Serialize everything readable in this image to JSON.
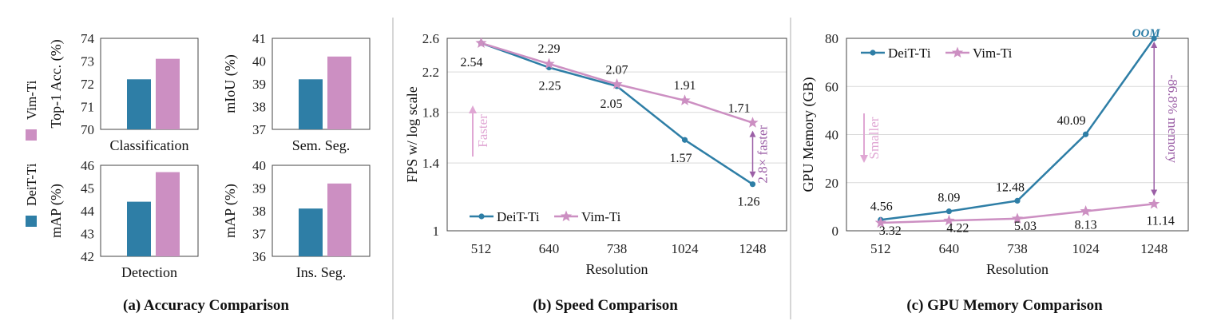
{
  "colors": {
    "deit": "#2e7ea6",
    "vim": "#cc8fc2",
    "faster_arrow": "#e0a7d4",
    "annotation": "#9b5fa6",
    "gridline": "#d9d9d9",
    "separator": "#c8c8c8"
  },
  "legend": {
    "deit": "DeiT-Ti",
    "vim": "Vim-Ti"
  },
  "captions": {
    "a": "(a) Accuracy Comparison",
    "b": "(b) Speed Comparison",
    "c": "(c) GPU Memory Comparison"
  },
  "annotations": {
    "faster": "Faster",
    "smaller": "Smaller",
    "speedup": "2.8× faster",
    "memory": "-86.8% memory",
    "oom": "OOM"
  },
  "chart_data": [
    {
      "id": "classification",
      "type": "bar",
      "xlabel": "Classification",
      "ylabel": "Top-1 Acc. (%)",
      "ylim": [
        70,
        74
      ],
      "yticks": [
        70,
        71,
        72,
        73,
        74
      ],
      "series": [
        {
          "name": "DeiT-Ti",
          "values": [
            72.2
          ]
        },
        {
          "name": "Vim-Ti",
          "values": [
            73.1
          ]
        }
      ]
    },
    {
      "id": "semseg",
      "type": "bar",
      "xlabel": "Sem. Seg.",
      "ylabel": "mIoU (%)",
      "ylim": [
        37,
        41
      ],
      "yticks": [
        37,
        38,
        39,
        40,
        41
      ],
      "series": [
        {
          "name": "DeiT-Ti",
          "values": [
            39.2
          ]
        },
        {
          "name": "Vim-Ti",
          "values": [
            40.2
          ]
        }
      ]
    },
    {
      "id": "detection",
      "type": "bar",
      "xlabel": "Detection",
      "ylabel": "mAP (%)",
      "ylim": [
        42,
        46
      ],
      "yticks": [
        42,
        43,
        44,
        45,
        46
      ],
      "series": [
        {
          "name": "DeiT-Ti",
          "values": [
            44.4
          ]
        },
        {
          "name": "Vim-Ti",
          "values": [
            45.7
          ]
        }
      ]
    },
    {
      "id": "insseg",
      "type": "bar",
      "xlabel": "Ins. Seg.",
      "ylabel": "mAP (%)",
      "ylim": [
        36,
        40
      ],
      "yticks": [
        36,
        37,
        38,
        39,
        40
      ],
      "series": [
        {
          "name": "DeiT-Ti",
          "values": [
            38.1
          ]
        },
        {
          "name": "Vim-Ti",
          "values": [
            39.2
          ]
        }
      ]
    },
    {
      "id": "speed",
      "type": "line",
      "x": [
        "512",
        "640",
        "738",
        "1024",
        "1248"
      ],
      "xlabel": "Resolution",
      "ylabel": "FPS w/ log scale",
      "ylim": [
        1,
        2.6
      ],
      "yticks": [
        "1",
        "1.4",
        "1.8",
        "2.2",
        "2.6"
      ],
      "grid": true,
      "legend_position": "bottom-left",
      "series": [
        {
          "name": "DeiT-Ti",
          "values": [
            2.54,
            2.25,
            2.05,
            1.57,
            1.26
          ],
          "labels": [
            "",
            "2.25",
            "2.05",
            "1.57",
            "1.26"
          ]
        },
        {
          "name": "Vim-Ti",
          "values": [
            2.54,
            2.29,
            2.07,
            1.91,
            1.71
          ],
          "labels": [
            "2.54",
            "2.29",
            "2.07",
            "1.91",
            "1.71"
          ]
        }
      ]
    },
    {
      "id": "memory",
      "type": "line",
      "x": [
        "512",
        "640",
        "738",
        "1024",
        "1248"
      ],
      "xlabel": "Resolution",
      "ylabel": "GPU Memory (GB)",
      "ylim": [
        0,
        80
      ],
      "yticks": [
        "0",
        "20",
        "40",
        "60",
        "80"
      ],
      "grid": true,
      "legend_position": "top-left",
      "series": [
        {
          "name": "DeiT-Ti",
          "values": [
            4.56,
            8.09,
            12.48,
            40.09,
            80
          ],
          "labels": [
            "4.56",
            "8.09",
            "12.48",
            "40.09",
            ""
          ]
        },
        {
          "name": "Vim-Ti",
          "values": [
            3.32,
            4.22,
            5.03,
            8.13,
            11.14
          ],
          "labels": [
            "3.32",
            "4.22",
            "5.03",
            "8.13",
            "11.14"
          ]
        }
      ]
    }
  ]
}
